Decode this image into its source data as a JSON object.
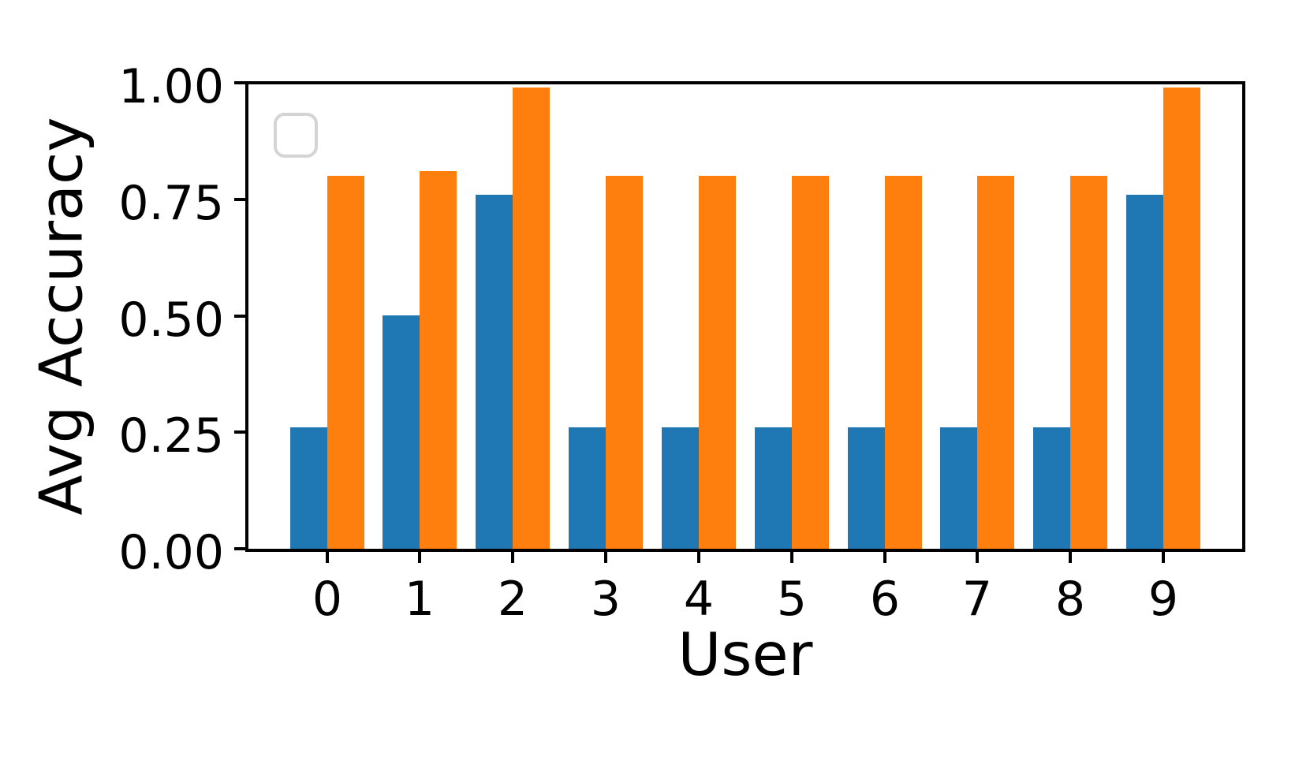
{
  "chart_data": {
    "type": "bar",
    "title": "",
    "xlabel": "User",
    "ylabel": "Avg Accuracy",
    "categories": [
      "0",
      "1",
      "2",
      "3",
      "4",
      "5",
      "6",
      "7",
      "8",
      "9"
    ],
    "series": [
      {
        "name": "blue",
        "color": "#1f77b4",
        "values": [
          0.26,
          0.5,
          0.76,
          0.26,
          0.26,
          0.26,
          0.26,
          0.26,
          0.26,
          0.76
        ]
      },
      {
        "name": "orange",
        "color": "#ff7f0e",
        "values": [
          0.8,
          0.81,
          0.99,
          0.8,
          0.8,
          0.8,
          0.8,
          0.8,
          0.8,
          0.99
        ]
      }
    ],
    "ylim": [
      0.0,
      1.0
    ],
    "yticks": [
      "0.00",
      "0.25",
      "0.50",
      "0.75",
      "1.00"
    ],
    "ytick_values": [
      0.0,
      0.25,
      0.5,
      0.75,
      1.0
    ],
    "grid": false,
    "bar_width": 0.4,
    "legend": {
      "visible": true,
      "entries": [],
      "empty_frame": true,
      "position": "upper-left",
      "frame_color": "#d4d4d4"
    },
    "axis_color": "#000000",
    "background_color": "#ffffff"
  }
}
